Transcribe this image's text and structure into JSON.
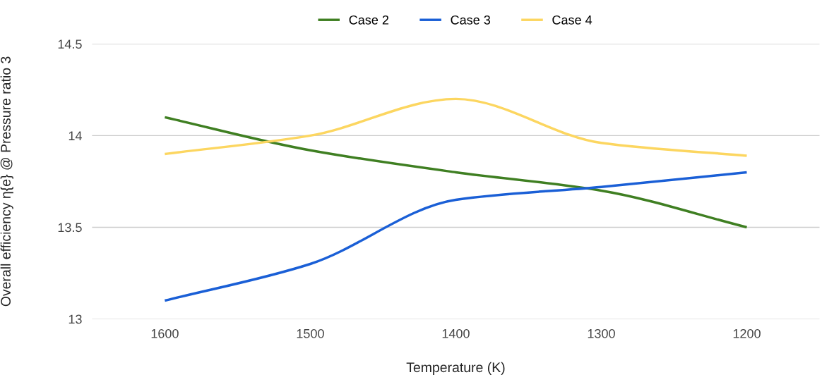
{
  "chart_data": {
    "type": "line",
    "xlabel": "Temperature (K)",
    "ylabel": "Overall efficiency η{e} @ Pressure ratio 3",
    "categories": [
      "1600",
      "1500",
      "1400",
      "1300",
      "1200"
    ],
    "series": [
      {
        "name": "Case 2",
        "color": "#3f7f22",
        "values": [
          14.1,
          13.92,
          13.8,
          13.7,
          13.5
        ]
      },
      {
        "name": "Case 3",
        "color": "#1a5fd6",
        "values": [
          13.1,
          13.3,
          13.65,
          13.72,
          13.8
        ]
      },
      {
        "name": "Case 4",
        "color": "#fcd660",
        "values": [
          13.9,
          14.0,
          14.2,
          13.96,
          13.89
        ]
      }
    ],
    "ylim": [
      13,
      14.5
    ],
    "yticks": [
      13,
      13.5,
      14,
      14.5
    ],
    "grid": "y",
    "legend": "top",
    "marker": "none",
    "line_style": "solid"
  }
}
